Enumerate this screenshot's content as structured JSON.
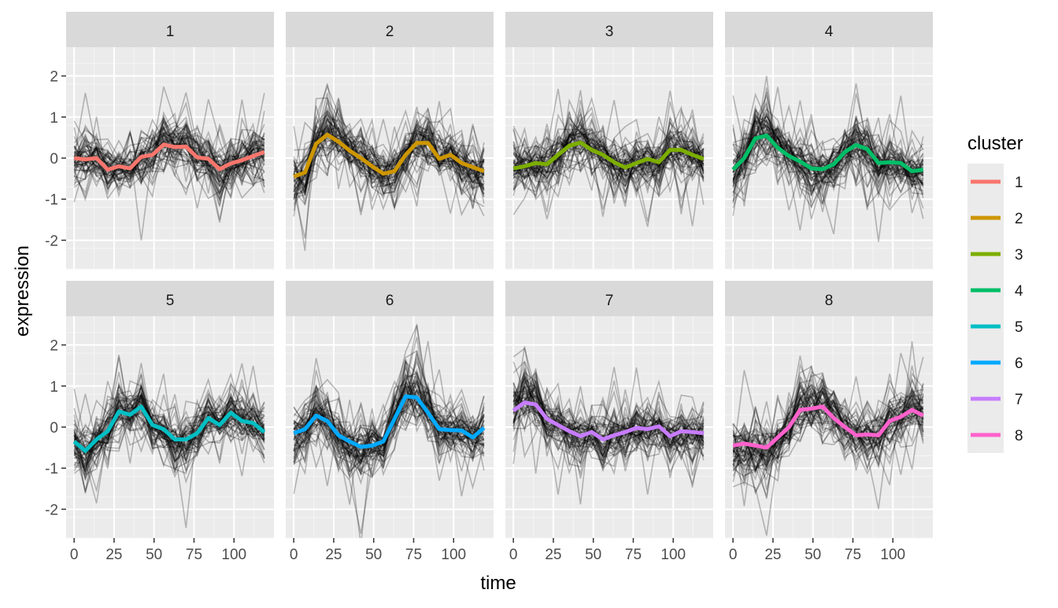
{
  "chart_data": {
    "type": "line",
    "layout": "faceted 2x4 grid",
    "xlabel": "time",
    "ylabel": "expression",
    "xlim": [
      -5,
      125
    ],
    "ylim": [
      -2.7,
      2.7
    ],
    "x_ticks": [
      0,
      25,
      50,
      75,
      100
    ],
    "y_ticks": [
      -2,
      -1,
      0,
      1,
      2
    ],
    "grid": true,
    "legend": {
      "title": "cluster",
      "position": "right"
    },
    "x": [
      0,
      7,
      14,
      21,
      28,
      35,
      42,
      49,
      56,
      63,
      70,
      77,
      84,
      91,
      98,
      105,
      112,
      119
    ],
    "background_lines": "many thin semi-transparent black gene trajectories per panel",
    "series": [
      {
        "name": "1",
        "color": "#F8766D",
        "values": [
          0.0,
          -0.03,
          0.0,
          -0.28,
          -0.2,
          -0.25,
          0.03,
          0.08,
          0.33,
          0.27,
          0.28,
          0.02,
          -0.02,
          -0.27,
          -0.13,
          -0.05,
          0.05,
          0.15
        ]
      },
      {
        "name": "2",
        "color": "#CD9600",
        "values": [
          -0.45,
          -0.35,
          0.35,
          0.57,
          0.4,
          0.18,
          0.0,
          -0.2,
          -0.38,
          -0.32,
          0.08,
          0.37,
          0.37,
          -0.02,
          0.08,
          -0.12,
          -0.22,
          -0.32
        ]
      },
      {
        "name": "3",
        "color": "#7CAE00",
        "values": [
          -0.25,
          -0.2,
          -0.12,
          -0.15,
          0.08,
          0.3,
          0.38,
          0.2,
          0.08,
          -0.1,
          -0.23,
          -0.12,
          -0.02,
          -0.1,
          0.2,
          0.2,
          0.08,
          -0.02
        ]
      },
      {
        "name": "4",
        "color": "#00BE67",
        "values": [
          -0.28,
          0.0,
          0.48,
          0.55,
          0.25,
          0.05,
          -0.08,
          -0.25,
          -0.27,
          -0.15,
          0.15,
          0.32,
          0.22,
          -0.12,
          -0.1,
          -0.12,
          -0.32,
          -0.28
        ]
      },
      {
        "name": "5",
        "color": "#00BFC4",
        "values": [
          -0.35,
          -0.58,
          -0.3,
          -0.1,
          0.38,
          0.3,
          0.5,
          0.05,
          -0.05,
          -0.3,
          -0.3,
          -0.15,
          0.22,
          0.05,
          0.35,
          0.15,
          0.1,
          -0.12
        ]
      },
      {
        "name": "6",
        "color": "#00A9FF",
        "values": [
          -0.15,
          -0.05,
          0.28,
          0.15,
          -0.2,
          -0.35,
          -0.48,
          -0.45,
          -0.35,
          0.2,
          0.75,
          0.72,
          0.35,
          -0.05,
          -0.07,
          -0.08,
          -0.25,
          -0.02
        ]
      },
      {
        "name": "7",
        "color": "#C77CFF",
        "values": [
          0.4,
          0.6,
          0.55,
          0.2,
          0.05,
          -0.1,
          -0.22,
          -0.12,
          -0.3,
          -0.2,
          -0.12,
          -0.02,
          -0.05,
          0.02,
          -0.22,
          -0.1,
          -0.12,
          -0.15
        ]
      },
      {
        "name": "8",
        "color": "#FF61CC",
        "values": [
          -0.45,
          -0.4,
          -0.45,
          -0.5,
          -0.25,
          0.0,
          0.42,
          0.45,
          0.5,
          0.22,
          0.0,
          -0.2,
          -0.18,
          -0.2,
          0.15,
          0.25,
          0.42,
          0.28
        ]
      }
    ]
  }
}
